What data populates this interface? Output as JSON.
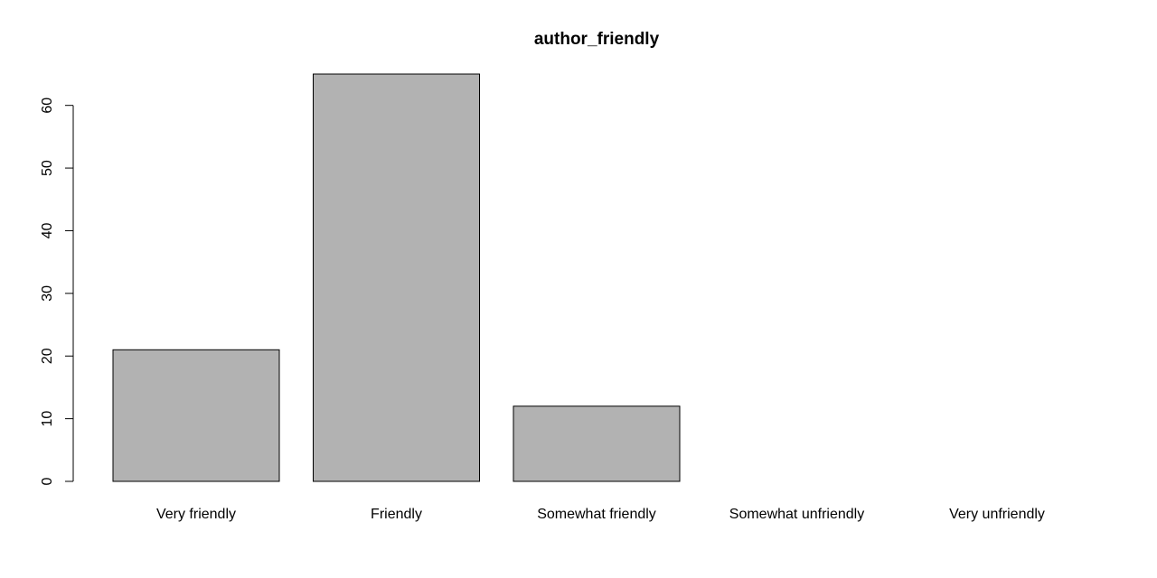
{
  "chart_data": {
    "type": "bar",
    "title": "author_friendly",
    "xlabel": "",
    "ylabel": "",
    "categories": [
      "Very friendly",
      "Friendly",
      "Somewhat friendly",
      "Somewhat unfriendly",
      "Very unfriendly"
    ],
    "values": [
      21,
      65,
      12,
      0,
      0
    ],
    "ylim": [
      0,
      65
    ],
    "yticks": [
      0,
      10,
      20,
      30,
      40,
      50,
      60
    ],
    "grid": false,
    "legend": "none",
    "bar_color": "#b2b2b2",
    "bar_edge_color": "#000000"
  }
}
